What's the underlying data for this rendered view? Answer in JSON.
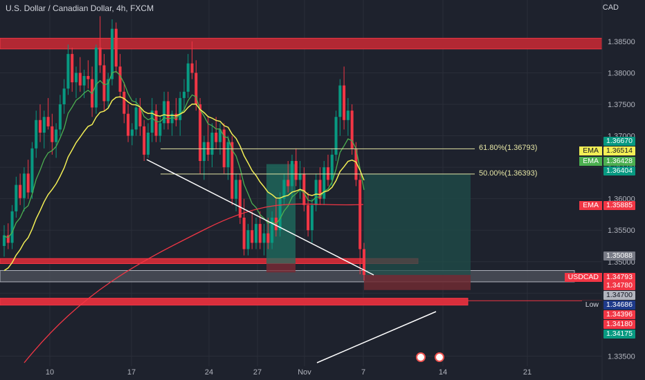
{
  "header": {
    "title": "U.S. Dollar / Canadian Dollar, 4h, FXCM",
    "currency": "CAD"
  },
  "chart_data": {
    "type": "candlestick",
    "symbol": "USDCAD",
    "timeframe": "4h",
    "ylim": [
      1.3345,
      1.3885
    ],
    "y_ticks": [
      1.385,
      1.38,
      1.375,
      1.37,
      1.365,
      1.36,
      1.355,
      1.35,
      1.345,
      1.335
    ],
    "x_ticks": [
      "10",
      "17",
      "24",
      "27",
      "Nov",
      "7",
      "14",
      "21"
    ],
    "indicators": [
      {
        "name": "EMA",
        "color": "#f3ef55",
        "last": 1.36514
      },
      {
        "name": "EMA",
        "color": "#4caf50",
        "last": 1.36428
      },
      {
        "name": "EMA",
        "color": "#f23645",
        "last": 1.35885
      }
    ],
    "fibonacci": [
      {
        "label": "61.80%(1.36793)",
        "price": 1.36793
      },
      {
        "label": "50.00%(1.36393)",
        "price": 1.36393
      }
    ],
    "zones": [
      {
        "type": "resistance",
        "top": 1.3855,
        "bottom": 1.3838
      },
      {
        "type": "support",
        "top": 1.3505,
        "bottom": 1.3497
      },
      {
        "type": "support",
        "top": 1.3442,
        "bottom": 1.3431
      }
    ],
    "price_labels": [
      {
        "value": "1.36670",
        "bg": "#089981",
        "fg": "#ffffff",
        "tag": ""
      },
      {
        "value": "1.36514",
        "bg": "#f3ef55",
        "fg": "#131722",
        "tag": "EMA"
      },
      {
        "value": "1.36428",
        "bg": "#4caf50",
        "fg": "#ffffff",
        "tag": "EMA"
      },
      {
        "value": "1.36404",
        "bg": "#089981",
        "fg": "#ffffff",
        "tag": ""
      },
      {
        "value": "1.35885",
        "bg": "#f23645",
        "fg": "#ffffff",
        "tag": "EMA"
      },
      {
        "value": "1.35088",
        "bg": "#787b86",
        "fg": "#ffffff",
        "tag": ""
      },
      {
        "value": "1.34793",
        "bg": "#f23645",
        "fg": "#ffffff",
        "tag": "USDCAD"
      },
      {
        "value": "1.34780",
        "bg": "#f23645",
        "fg": "#ffffff",
        "tag": ""
      },
      {
        "value": "1.34700",
        "bg": "#b2b5be",
        "fg": "#131722",
        "tag": ""
      },
      {
        "value": "1.34686",
        "bg": "#1e3a8a",
        "fg": "#ffffff",
        "tag": "Low"
      },
      {
        "value": "1.34396",
        "bg": "#f23645",
        "fg": "#ffffff",
        "tag": ""
      },
      {
        "value": "1.34180",
        "bg": "#f23645",
        "fg": "#ffffff",
        "tag": ""
      },
      {
        "value": "1.34175",
        "bg": "#089981",
        "fg": "#ffffff",
        "tag": ""
      }
    ],
    "candles": [
      [
        1.3525,
        1.3558,
        1.3508,
        1.3542
      ],
      [
        1.3542,
        1.3561,
        1.352,
        1.353
      ],
      [
        1.353,
        1.359,
        1.352,
        1.358
      ],
      [
        1.358,
        1.3635,
        1.357,
        1.3622
      ],
      [
        1.3622,
        1.364,
        1.359,
        1.3601
      ],
      [
        1.3601,
        1.365,
        1.358,
        1.364
      ],
      [
        1.364,
        1.3662,
        1.36,
        1.361
      ],
      [
        1.361,
        1.369,
        1.36,
        1.368
      ],
      [
        1.368,
        1.374,
        1.3665,
        1.3725
      ],
      [
        1.3725,
        1.375,
        1.369,
        1.3705
      ],
      [
        1.3705,
        1.374,
        1.368,
        1.373
      ],
      [
        1.373,
        1.376,
        1.371,
        1.3715
      ],
      [
        1.3715,
        1.3735,
        1.367,
        1.369
      ],
      [
        1.369,
        1.372,
        1.3665,
        1.371
      ],
      [
        1.371,
        1.3765,
        1.37,
        1.375
      ],
      [
        1.375,
        1.379,
        1.3735,
        1.3775
      ],
      [
        1.3775,
        1.3845,
        1.3765,
        1.383
      ],
      [
        1.383,
        1.384,
        1.377,
        1.3785
      ],
      [
        1.3785,
        1.381,
        1.376,
        1.38
      ],
      [
        1.38,
        1.3825,
        1.377,
        1.378
      ],
      [
        1.378,
        1.3805,
        1.376,
        1.3795
      ],
      [
        1.3795,
        1.382,
        1.3775,
        1.379
      ],
      [
        1.379,
        1.381,
        1.373,
        1.3745
      ],
      [
        1.3745,
        1.3845,
        1.3735,
        1.384
      ],
      [
        1.384,
        1.389,
        1.38,
        1.3812
      ],
      [
        1.3812,
        1.383,
        1.374,
        1.3755
      ],
      [
        1.3755,
        1.38,
        1.3745,
        1.379
      ],
      [
        1.379,
        1.3885,
        1.378,
        1.387
      ],
      [
        1.387,
        1.388,
        1.38,
        1.381
      ],
      [
        1.381,
        1.383,
        1.376,
        1.377
      ],
      [
        1.377,
        1.3785,
        1.372,
        1.3735
      ],
      [
        1.3735,
        1.375,
        1.369,
        1.37
      ],
      [
        1.37,
        1.372,
        1.3685,
        1.371
      ],
      [
        1.371,
        1.376,
        1.37,
        1.3745
      ],
      [
        1.3745,
        1.376,
        1.37,
        1.3715
      ],
      [
        1.3715,
        1.3725,
        1.366,
        1.367
      ],
      [
        1.367,
        1.372,
        1.3665,
        1.3705
      ],
      [
        1.3705,
        1.376,
        1.369,
        1.374
      ],
      [
        1.374,
        1.375,
        1.369,
        1.37
      ],
      [
        1.37,
        1.373,
        1.369,
        1.372
      ],
      [
        1.372,
        1.377,
        1.371,
        1.3755
      ],
      [
        1.3755,
        1.377,
        1.371,
        1.372
      ],
      [
        1.372,
        1.374,
        1.37,
        1.3735
      ],
      [
        1.3735,
        1.376,
        1.3715,
        1.3725
      ],
      [
        1.3725,
        1.377,
        1.37,
        1.376
      ],
      [
        1.376,
        1.379,
        1.374,
        1.377
      ],
      [
        1.377,
        1.383,
        1.376,
        1.3815
      ],
      [
        1.3815,
        1.385,
        1.379,
        1.38
      ],
      [
        1.38,
        1.382,
        1.374,
        1.375
      ],
      [
        1.375,
        1.376,
        1.364,
        1.366
      ],
      [
        1.366,
        1.37,
        1.363,
        1.369
      ],
      [
        1.369,
        1.373,
        1.366,
        1.367
      ],
      [
        1.367,
        1.372,
        1.365,
        1.3705
      ],
      [
        1.3705,
        1.373,
        1.368,
        1.369
      ],
      [
        1.369,
        1.372,
        1.367,
        1.371
      ],
      [
        1.371,
        1.372,
        1.364,
        1.365
      ],
      [
        1.365,
        1.37,
        1.363,
        1.369
      ],
      [
        1.369,
        1.37,
        1.359,
        1.36
      ],
      [
        1.36,
        1.364,
        1.358,
        1.363
      ],
      [
        1.363,
        1.364,
        1.356,
        1.357
      ],
      [
        1.357,
        1.36,
        1.351,
        1.352
      ],
      [
        1.352,
        1.356,
        1.351,
        1.355
      ],
      [
        1.355,
        1.358,
        1.352,
        1.353
      ],
      [
        1.353,
        1.357,
        1.352,
        1.356
      ],
      [
        1.356,
        1.358,
        1.352,
        1.353
      ],
      [
        1.353,
        1.356,
        1.351,
        1.3545
      ],
      [
        1.3545,
        1.357,
        1.352,
        1.353
      ],
      [
        1.353,
        1.358,
        1.352,
        1.357
      ],
      [
        1.357,
        1.36,
        1.354,
        1.355
      ],
      [
        1.355,
        1.361,
        1.354,
        1.36
      ],
      [
        1.36,
        1.364,
        1.359,
        1.363
      ],
      [
        1.363,
        1.366,
        1.361,
        1.362
      ],
      [
        1.362,
        1.367,
        1.36,
        1.366
      ],
      [
        1.366,
        1.368,
        1.362,
        1.363
      ],
      [
        1.363,
        1.366,
        1.36,
        1.364
      ],
      [
        1.364,
        1.365,
        1.358,
        1.359
      ],
      [
        1.359,
        1.361,
        1.354,
        1.355
      ],
      [
        1.355,
        1.36,
        1.353,
        1.359
      ],
      [
        1.359,
        1.364,
        1.358,
        1.363
      ],
      [
        1.363,
        1.365,
        1.359,
        1.36
      ],
      [
        1.36,
        1.366,
        1.359,
        1.365
      ],
      [
        1.365,
        1.367,
        1.362,
        1.363
      ],
      [
        1.363,
        1.368,
        1.362,
        1.367
      ],
      [
        1.367,
        1.374,
        1.366,
        1.373
      ],
      [
        1.373,
        1.379,
        1.37,
        1.378
      ],
      [
        1.378,
        1.381,
        1.371,
        1.3725
      ],
      [
        1.3725,
        1.376,
        1.37,
        1.374
      ],
      [
        1.374,
        1.375,
        1.367,
        1.368
      ],
      [
        1.368,
        1.369,
        1.362,
        1.363
      ],
      [
        1.363,
        1.364,
        1.348,
        1.352
      ],
      [
        1.352,
        1.353,
        1.347,
        1.3479
      ]
    ]
  }
}
